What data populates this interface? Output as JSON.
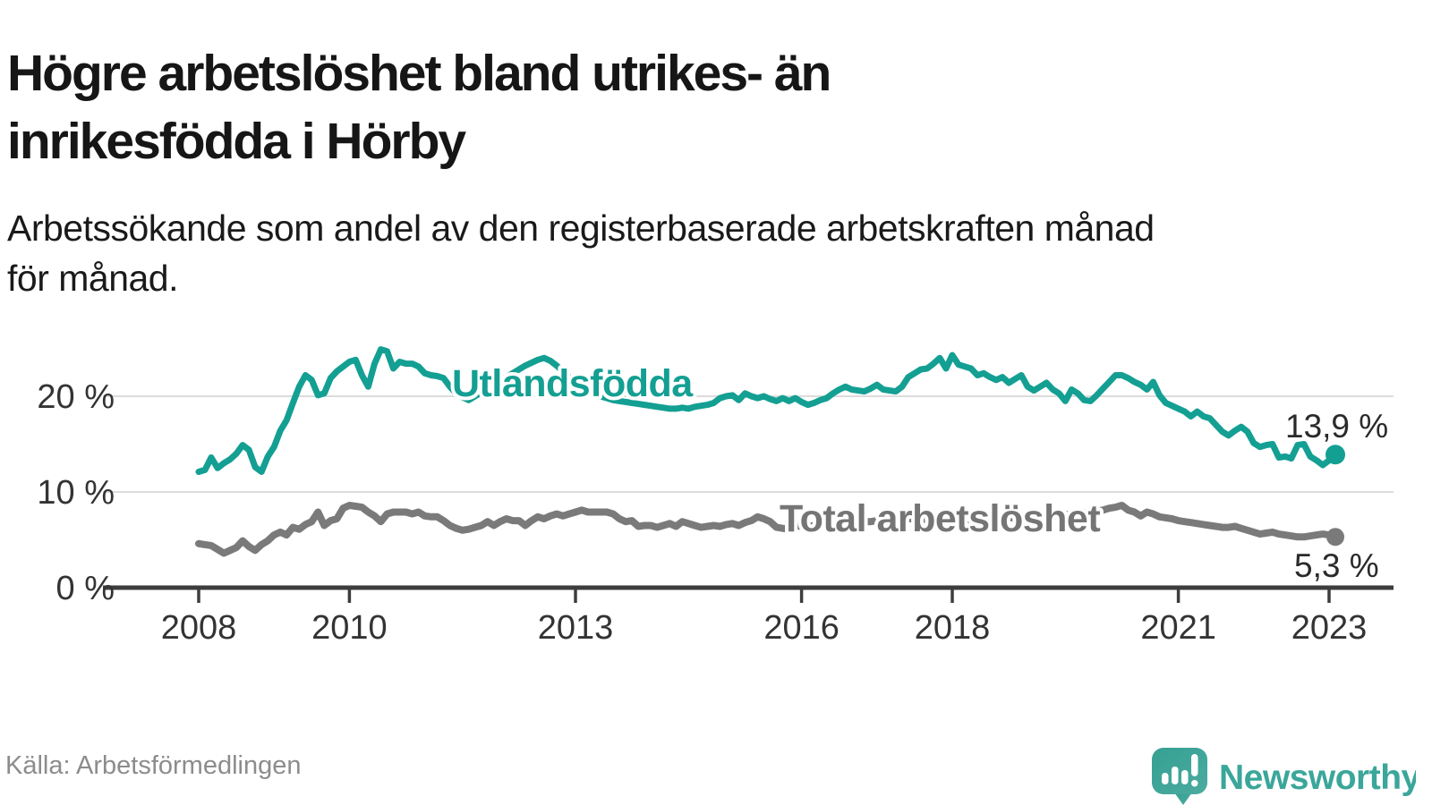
{
  "header": {
    "title_line1": "Högre arbetslöshet bland utrikes- än",
    "title_line2": "inrikesfödda i Hörby",
    "subtitle_line1": "Arbetssökande som andel av den registerbaserade arbetskraften månad",
    "subtitle_line2": "för månad."
  },
  "footer": {
    "source": "Källa: Arbetsförmedlingen",
    "brand": "Newsworthy"
  },
  "colors": {
    "series_foreign": "#149f93",
    "series_total": "#7a7a7a",
    "grid": "#dcdcdc",
    "axis": "#3d3d3d",
    "tick_text": "#333333",
    "value_text": "#2a2a2a",
    "logo": "#3ba69a"
  },
  "chart_data": {
    "type": "line",
    "title": "Högre arbetslöshet bland utrikes- än inrikesfödda i Hörby",
    "subtitle": "Arbetssökande som andel av den registerbaserade arbetskraften månad för månad.",
    "x_unit": "month",
    "x_start": "2008-01",
    "x_end": "2023-02",
    "x_tick_labels": [
      "2008",
      "2010",
      "2013",
      "2016",
      "2018",
      "2021",
      "2023"
    ],
    "y_ticks": [
      0,
      10,
      20
    ],
    "y_tick_labels": [
      "0 %",
      "10 %",
      "20 %"
    ],
    "ylim": [
      0,
      26
    ],
    "grid": "horizontal",
    "legend_position": "inline-labels",
    "series": [
      {
        "name": "Utlandsfödda",
        "color": "#149f93",
        "end_label": "13,9 %",
        "end_value": 13.9,
        "values": [
          12.1,
          12.3,
          13.6,
          12.5,
          13.0,
          13.4,
          14.0,
          14.9,
          14.4,
          12.6,
          12.1,
          13.7,
          14.7,
          16.4,
          17.5,
          19.3,
          21.0,
          22.2,
          21.7,
          20.1,
          20.3,
          21.9,
          22.6,
          23.1,
          23.6,
          23.8,
          22.2,
          21.0,
          23.4,
          24.9,
          24.7,
          22.9,
          23.6,
          23.4,
          23.4,
          23.1,
          22.4,
          22.2,
          22.1,
          21.9,
          21.0,
          20.3,
          19.9,
          19.6,
          20.0,
          20.4,
          20.8,
          21.2,
          21.6,
          22.0,
          22.4,
          22.8,
          23.2,
          23.5,
          23.8,
          24.0,
          23.7,
          23.2,
          22.6,
          22.0,
          21.5,
          21.0,
          20.6,
          20.3,
          20.0,
          19.8,
          19.6,
          19.5,
          19.4,
          19.3,
          19.2,
          19.1,
          19.0,
          18.9,
          18.8,
          18.7,
          18.7,
          18.8,
          18.7,
          18.9,
          19.0,
          19.1,
          19.3,
          19.8,
          20.0,
          20.1,
          19.6,
          20.3,
          20.0,
          19.8,
          20.0,
          19.7,
          19.5,
          19.8,
          19.5,
          19.8,
          19.4,
          19.1,
          19.3,
          19.6,
          19.8,
          20.3,
          20.7,
          21.0,
          20.7,
          20.6,
          20.5,
          20.8,
          21.2,
          20.7,
          20.6,
          20.5,
          21.0,
          22.0,
          22.4,
          22.8,
          22.9,
          23.4,
          24.0,
          22.9,
          24.3,
          23.3,
          23.1,
          22.9,
          22.2,
          22.4,
          22.0,
          21.7,
          22.0,
          21.4,
          21.8,
          22.2,
          21.0,
          20.6,
          21.0,
          21.4,
          20.7,
          20.3,
          19.5,
          20.7,
          20.3,
          19.6,
          19.5,
          20.1,
          20.8,
          21.5,
          22.2,
          22.2,
          21.9,
          21.5,
          21.2,
          20.7,
          21.5,
          20.1,
          19.3,
          19.0,
          18.7,
          18.4,
          17.9,
          18.4,
          17.9,
          17.7,
          17.0,
          16.3,
          15.9,
          16.4,
          16.8,
          16.3,
          15.1,
          14.7,
          14.9,
          15.0,
          13.6,
          13.7,
          13.5,
          14.9,
          15.0,
          13.7,
          13.3,
          12.8,
          13.3,
          13.9
        ]
      },
      {
        "name": "Total arbetslöshet",
        "color": "#7a7a7a",
        "end_label": "5,3 %",
        "end_value": 5.3,
        "values": [
          4.6,
          4.5,
          4.4,
          4.0,
          3.6,
          3.9,
          4.2,
          4.9,
          4.3,
          3.9,
          4.5,
          4.9,
          5.5,
          5.8,
          5.5,
          6.3,
          6.1,
          6.6,
          6.9,
          7.9,
          6.5,
          7.0,
          7.2,
          8.3,
          8.6,
          8.5,
          8.4,
          7.9,
          7.5,
          6.9,
          7.7,
          7.9,
          7.9,
          7.9,
          7.7,
          7.9,
          7.5,
          7.4,
          7.4,
          7.0,
          6.5,
          6.2,
          6.0,
          6.1,
          6.3,
          6.5,
          6.9,
          6.5,
          6.9,
          7.2,
          7.0,
          7.0,
          6.5,
          7.0,
          7.4,
          7.2,
          7.5,
          7.7,
          7.5,
          7.7,
          7.9,
          8.1,
          7.9,
          7.9,
          7.9,
          7.9,
          7.7,
          7.2,
          6.9,
          7.0,
          6.4,
          6.5,
          6.5,
          6.3,
          6.5,
          6.7,
          6.4,
          6.9,
          6.7,
          6.5,
          6.3,
          6.4,
          6.5,
          6.4,
          6.6,
          6.7,
          6.5,
          6.8,
          7.0,
          7.4,
          7.2,
          6.9,
          6.3,
          6.2,
          6.1,
          6.5,
          6.4,
          6.4,
          6.5,
          6.5,
          6.6,
          6.7,
          6.6,
          6.7,
          6.8,
          6.8,
          6.9,
          6.9,
          7.0,
          7.0,
          7.0,
          7.1,
          7.1,
          7.2,
          7.2,
          7.2,
          7.1,
          7.1,
          7.2,
          7.2,
          7.2,
          7.1,
          7.1,
          7.0,
          7.0,
          7.1,
          7.1,
          7.2,
          7.2,
          7.3,
          7.3,
          7.4,
          7.4,
          7.4,
          7.5,
          7.5,
          7.5,
          7.6,
          7.6,
          7.7,
          7.7,
          7.8,
          7.9,
          8.0,
          8.1,
          8.3,
          8.4,
          8.6,
          8.1,
          7.9,
          7.5,
          7.9,
          7.7,
          7.4,
          7.3,
          7.2,
          7.0,
          6.9,
          6.8,
          6.7,
          6.6,
          6.5,
          6.4,
          6.3,
          6.3,
          6.4,
          6.2,
          6.0,
          5.8,
          5.6,
          5.7,
          5.8,
          5.6,
          5.5,
          5.4,
          5.3,
          5.3,
          5.4,
          5.5,
          5.6,
          5.5,
          5.3
        ]
      }
    ]
  }
}
